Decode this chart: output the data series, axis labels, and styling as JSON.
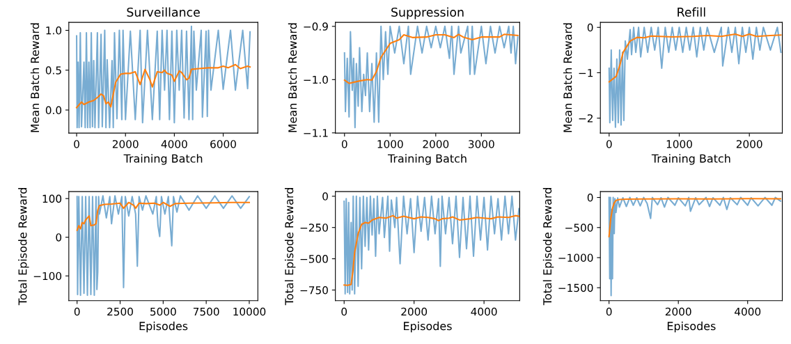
{
  "chart_data": [
    {
      "type": "line",
      "title": "Surveillance",
      "xlabel": "Training Batch",
      "ylabel": "Mean Batch Reward",
      "xlim": [
        -320,
        7420
      ],
      "ylim": [
        -0.29,
        1.1
      ],
      "xticks": [
        0,
        2000,
        4000,
        6000
      ],
      "yticks": [
        {
          "value": 0,
          "label": "0.0"
        },
        {
          "value": 0.5,
          "label": "0.5"
        },
        {
          "value": 1,
          "label": "1.0"
        }
      ],
      "series": [
        {
          "color": "#78acd2",
          "x": [
            0,
            20,
            60,
            100,
            150,
            200,
            300,
            350,
            400,
            450,
            500,
            550,
            600,
            650,
            700,
            750,
            850,
            900,
            1000,
            1050,
            1150,
            1200,
            1250,
            1350,
            1450,
            1500,
            1550,
            1650,
            1750,
            1850,
            1900,
            2000,
            2200,
            2400,
            2600,
            2700,
            2900,
            3100,
            3300,
            3400,
            3500,
            3600,
            3700,
            3800,
            3900,
            4000,
            4100,
            4200,
            4300,
            4400,
            4500,
            4600,
            4700,
            4750,
            4800,
            4900,
            5100,
            5150,
            5300,
            5350,
            5400,
            5500,
            5800,
            6000,
            6300,
            6500,
            6800,
            7000,
            7100
          ],
          "values": [
            0.93,
            -0.22,
            0.6,
            -0.22,
            0.97,
            -0.21,
            0.6,
            -0.22,
            0.97,
            -0.22,
            0.6,
            -0.22,
            0.97,
            -0.21,
            0.62,
            -0.22,
            0.97,
            -0.22,
            0.95,
            -0.21,
            1.0,
            -0.22,
            0.63,
            -0.22,
            0.62,
            -0.22,
            0.97,
            -0.11,
            1.0,
            -0.12,
            1.0,
            -0.12,
            0.99,
            -0.12,
            1.0,
            -0.16,
            1.0,
            -0.12,
            0.99,
            -0.12,
            1.0,
            0.25,
            1.0,
            -0.12,
            0.99,
            -0.16,
            1.0,
            0.25,
            1.0,
            -0.1,
            0.99,
            -0.12,
            1.05,
            -0.12,
            0.99,
            0.25,
            1.0,
            -0.09,
            0.99,
            -0.08,
            1.0,
            0.25,
            1.0,
            0.26,
            1.0,
            0.25,
            1.0,
            0.27,
            0.98
          ]
        },
        {
          "color": "#ff7f0e",
          "x": [
            0,
            200,
            300,
            500,
            700,
            900,
            1000,
            1100,
            1200,
            1300,
            1400,
            1500,
            1600,
            1800,
            2000,
            2200,
            2400,
            2600,
            2800,
            3000,
            3100,
            3300,
            3500,
            3600,
            3700,
            3900,
            4000,
            4200,
            4300,
            4500,
            4600,
            4700,
            5000,
            5400,
            5800,
            6000,
            6200,
            6500,
            6700,
            7000,
            7100
          ],
          "values": [
            0.03,
            0.1,
            0.07,
            0.1,
            0.12,
            0.17,
            0.2,
            0.18,
            0.08,
            0.1,
            0.04,
            0.2,
            0.35,
            0.45,
            0.46,
            0.46,
            0.48,
            0.32,
            0.51,
            0.38,
            0.29,
            0.48,
            0.47,
            0.5,
            0.46,
            0.44,
            0.36,
            0.49,
            0.47,
            0.38,
            0.4,
            0.51,
            0.52,
            0.53,
            0.53,
            0.55,
            0.53,
            0.57,
            0.52,
            0.55,
            0.54
          ]
        }
      ]
    },
    {
      "type": "line",
      "title": "Suppression",
      "xlabel": "Training Batch",
      "ylabel": "Mean Batch Reward",
      "xlim": [
        -200,
        3840
      ],
      "ylim": [
        -1.1005,
        -0.8925
      ],
      "xticks": [
        0,
        1000,
        2000,
        3000
      ],
      "yticks": [
        {
          "value": -1.1,
          "label": "−1.1"
        },
        {
          "value": -1.0,
          "label": "−1.0"
        },
        {
          "value": -0.9,
          "label": "−0.9"
        }
      ],
      "series": [
        {
          "color": "#78acd2",
          "x": [
            0,
            20,
            60,
            100,
            130,
            170,
            200,
            230,
            260,
            300,
            330,
            380,
            420,
            460,
            500,
            550,
            600,
            650,
            700,
            750,
            800,
            850,
            900,
            950,
            1000,
            1100,
            1200,
            1300,
            1400,
            1450,
            1600,
            1700,
            1800,
            1900,
            2000,
            2100,
            2200,
            2300,
            2350,
            2400,
            2500,
            2550,
            2700,
            2750,
            2800,
            2850,
            3000,
            3100,
            3200,
            3300,
            3400,
            3500,
            3600,
            3650,
            3700,
            3750,
            3800
          ],
          "values": [
            -0.95,
            -1.06,
            -0.96,
            -1.07,
            -0.91,
            -1.02,
            -0.96,
            -1.09,
            -0.97,
            -1.05,
            -0.94,
            -1.06,
            -0.99,
            -1.03,
            -0.95,
            -1.06,
            -0.97,
            -1.08,
            -0.95,
            -1.08,
            -0.9,
            -1.0,
            -0.91,
            -0.99,
            -0.9,
            -0.95,
            -0.9,
            -0.97,
            -0.9,
            -0.99,
            -0.9,
            -0.95,
            -0.9,
            -0.94,
            -0.9,
            -0.94,
            -0.9,
            -0.96,
            -0.9,
            -0.99,
            -0.9,
            -0.95,
            -0.9,
            -0.99,
            -0.9,
            -0.99,
            -0.9,
            -0.97,
            -0.9,
            -0.95,
            -0.9,
            -0.94,
            -0.9,
            -0.95,
            -0.9,
            -0.97,
            -0.92
          ]
        },
        {
          "color": "#ff7f0e",
          "x": [
            0,
            100,
            300,
            500,
            600,
            700,
            800,
            1000,
            1200,
            1300,
            1500,
            1800,
            2000,
            2200,
            2400,
            2500,
            2600,
            2800,
            3000,
            3200,
            3400,
            3500,
            3800
          ],
          "values": [
            -1.001,
            -1.007,
            -1.003,
            -1.0,
            -1.001,
            -0.985,
            -0.958,
            -0.932,
            -0.925,
            -0.916,
            -0.921,
            -0.92,
            -0.916,
            -0.916,
            -0.921,
            -0.915,
            -0.92,
            -0.925,
            -0.92,
            -0.92,
            -0.92,
            -0.915,
            -0.917
          ]
        }
      ]
    },
    {
      "type": "line",
      "title": "Refill",
      "xlabel": "Training Batch",
      "ylabel": "Mean Batch Reward",
      "xlim": [
        -125,
        2470
      ],
      "ylim": [
        -2.33,
        0.11
      ],
      "xticks": [
        0,
        1000,
        2000
      ],
      "yticks": [
        {
          "value": -2,
          "label": "−2"
        },
        {
          "value": -1,
          "label": "−1"
        },
        0
      ],
      "series": [
        {
          "color": "#78acd2",
          "x": [
            0,
            10,
            30,
            50,
            70,
            90,
            110,
            130,
            150,
            170,
            190,
            210,
            230,
            260,
            300,
            320,
            350,
            380,
            420,
            450,
            500,
            550,
            600,
            650,
            700,
            750,
            800,
            850,
            900,
            950,
            1000,
            1050,
            1100,
            1150,
            1200,
            1250,
            1300,
            1350,
            1400,
            1500,
            1600,
            1620,
            1700,
            1750,
            1800,
            1850,
            1900,
            1950,
            2000,
            2050,
            2100,
            2150,
            2200,
            2300,
            2400,
            2450
          ],
          "values": [
            -0.9,
            -2.1,
            -0.5,
            -2.05,
            -0.9,
            -2.2,
            -0.7,
            -2.1,
            -0.5,
            -2.15,
            -0.55,
            -2.05,
            -0.3,
            -0.7,
            -0.05,
            -0.6,
            0.0,
            -0.55,
            0.0,
            -0.65,
            0.0,
            -0.55,
            0.0,
            -0.5,
            0.0,
            -0.9,
            0.0,
            -0.55,
            0.0,
            -0.5,
            0.0,
            -0.55,
            0.0,
            -0.5,
            0.0,
            -0.65,
            0.0,
            -0.5,
            0.0,
            -0.55,
            0.0,
            -0.85,
            0.0,
            -0.55,
            0.0,
            -0.8,
            0.0,
            -0.55,
            0.0,
            -0.7,
            0.0,
            -0.5,
            0.0,
            -0.5,
            0.0,
            -0.55
          ]
        },
        {
          "color": "#ff7f0e",
          "x": [
            0,
            100,
            150,
            200,
            300,
            400,
            500,
            600,
            900,
            1200,
            1400,
            1600,
            1800,
            1900,
            2000,
            2100,
            2300,
            2450
          ],
          "values": [
            -1.2,
            -1.08,
            -0.85,
            -0.55,
            -0.3,
            -0.22,
            -0.23,
            -0.19,
            -0.21,
            -0.2,
            -0.18,
            -0.2,
            -0.15,
            -0.2,
            -0.15,
            -0.2,
            -0.18,
            -0.17
          ]
        }
      ]
    },
    {
      "type": "line",
      "xlabel": "Episodes",
      "ylabel": "Total Episode Reward",
      "xlim": [
        -480,
        10500
      ],
      "ylim": [
        -164,
        118
      ],
      "xticks": [
        0,
        2500,
        5000,
        7500,
        10000
      ],
      "yticks": [
        {
          "value": -100,
          "label": "−100"
        },
        0,
        100
      ],
      "series": [
        {
          "color": "#78acd2",
          "x": [
            0,
            30,
            100,
            200,
            300,
            400,
            500,
            600,
            700,
            800,
            900,
            1000,
            1100,
            1150,
            1200,
            1250,
            1300,
            1500,
            1700,
            1900,
            2000,
            2200,
            2400,
            2600,
            2700,
            2800,
            3000,
            3200,
            3400,
            3500,
            3600,
            3800,
            4000,
            4400,
            4600,
            4700,
            4800,
            4900,
            5100,
            5300,
            5400,
            5500,
            5600,
            5800,
            6000,
            6500,
            7000,
            7500,
            8000,
            8500,
            9000,
            9500,
            10000
          ],
          "values": [
            105,
            -148,
            105,
            -150,
            105,
            -145,
            105,
            -150,
            105,
            -148,
            105,
            -150,
            105,
            -135,
            -90,
            105,
            60,
            107,
            50,
            105,
            35,
            107,
            60,
            105,
            -130,
            105,
            55,
            105,
            60,
            -75,
            105,
            70,
            107,
            60,
            105,
            30,
            2,
            105,
            60,
            105,
            40,
            -22,
            105,
            65,
            107,
            70,
            107,
            75,
            107,
            75,
            107,
            75,
            105
          ]
        },
        {
          "color": "#ff7f0e",
          "x": [
            0,
            100,
            200,
            300,
            400,
            500,
            600,
            700,
            800,
            1000,
            1100,
            1200,
            1300,
            1600,
            2000,
            2500,
            2700,
            3000,
            3300,
            3400,
            3600,
            4000,
            4500,
            4800,
            5000,
            5200,
            5400,
            5700,
            6500,
            8000,
            9000,
            10000
          ],
          "values": [
            18,
            30,
            22,
            38,
            35,
            45,
            50,
            55,
            30,
            32,
            35,
            70,
            82,
            85,
            86,
            88,
            75,
            90,
            82,
            75,
            88,
            87,
            88,
            83,
            90,
            85,
            80,
            87,
            88,
            89,
            90,
            90
          ]
        }
      ]
    },
    {
      "type": "line",
      "xlabel": "Episodes",
      "ylabel": "Total Episode Reward",
      "xlim": [
        -250,
        5020
      ],
      "ylim": [
        -835,
        37
      ],
      "xticks": [
        0,
        2000,
        4000
      ],
      "yticks": [
        {
          "value": -750,
          "label": "−750"
        },
        {
          "value": -500,
          "label": "−500"
        },
        {
          "value": -250,
          "label": "−250"
        },
        0
      ],
      "series": [
        {
          "color": "#78acd2",
          "x": [
            0,
            30,
            60,
            100,
            130,
            160,
            200,
            230,
            260,
            300,
            350,
            400,
            450,
            500,
            550,
            600,
            650,
            700,
            750,
            800,
            850,
            900,
            950,
            1000,
            1100,
            1150,
            1250,
            1300,
            1350,
            1450,
            1500,
            1600,
            1700,
            1800,
            1900,
            2000,
            2100,
            2200,
            2300,
            2400,
            2500,
            2600,
            2700,
            2750,
            2800,
            2900,
            3000,
            3100,
            3200,
            3300,
            3400,
            3500,
            3600,
            3700,
            3800,
            3900,
            4000,
            4100,
            4200,
            4300,
            4400,
            4500,
            4600,
            4700,
            4800,
            4900,
            5000
          ],
          "values": [
            -40,
            -780,
            -20,
            -770,
            -50,
            -780,
            -210,
            -750,
            0,
            -780,
            0,
            -720,
            -10,
            -580,
            0,
            -400,
            -10,
            -430,
            0,
            -310,
            -20,
            -480,
            0,
            -300,
            -10,
            -330,
            0,
            -440,
            -30,
            -250,
            -10,
            -540,
            0,
            -300,
            -20,
            -450,
            0,
            -280,
            -10,
            -350,
            0,
            -300,
            -20,
            -560,
            0,
            -300,
            -10,
            -380,
            0,
            -490,
            -10,
            -420,
            0,
            -480,
            0,
            -350,
            -10,
            -430,
            0,
            -300,
            -20,
            -350,
            0,
            -300,
            0,
            -350,
            -100
          ]
        },
        {
          "color": "#ff7f0e",
          "x": [
            0,
            100,
            200,
            250,
            300,
            400,
            500,
            600,
            700,
            800,
            1000,
            1200,
            1400,
            1500,
            1700,
            2000,
            2200,
            2400,
            2600,
            2700,
            2800,
            3000,
            3100,
            3300,
            3600,
            3800,
            4000,
            4200,
            4400,
            4700,
            4900,
            5000
          ],
          "values": [
            -710,
            -712,
            -705,
            -600,
            -450,
            -300,
            -225,
            -210,
            -215,
            -190,
            -170,
            -175,
            -155,
            -175,
            -160,
            -180,
            -165,
            -170,
            -180,
            -195,
            -180,
            -175,
            -165,
            -190,
            -180,
            -170,
            -175,
            -180,
            -165,
            -170,
            -155,
            -160
          ]
        }
      ]
    },
    {
      "type": "line",
      "xlabel": "Episodes",
      "ylabel": "Total Episode Reward",
      "xlim": [
        -250,
        5000
      ],
      "ylim": [
        -1715,
        97
      ],
      "xticks": [
        0,
        2000,
        4000
      ],
      "yticks": [
        {
          "value": -1500,
          "label": "−1500"
        },
        {
          "value": -1000,
          "label": "−1000"
        },
        {
          "value": -500,
          "label": "−500"
        },
        0
      ],
      "series": [
        {
          "color": "#78acd2",
          "x": [
            0,
            20,
            40,
            60,
            80,
            100,
            120,
            150,
            170,
            200,
            250,
            300,
            400,
            500,
            600,
            700,
            800,
            900,
            1000,
            1100,
            1200,
            1250,
            1400,
            1500,
            1600,
            1700,
            1900,
            2000,
            2200,
            2300,
            2350,
            2500,
            2600,
            2800,
            2900,
            3000,
            3200,
            3300,
            3400,
            3500,
            3700,
            3800,
            4000,
            4100,
            4300,
            4500,
            4700,
            4800,
            4950
          ],
          "values": [
            0,
            -1350,
            0,
            -1630,
            -200,
            -1350,
            0,
            -600,
            -20,
            -250,
            -10,
            -160,
            -5,
            -150,
            0,
            -130,
            -5,
            -140,
            0,
            -100,
            -350,
            0,
            -120,
            -5,
            -160,
            0,
            -130,
            -5,
            -140,
            0,
            -230,
            -5,
            -120,
            0,
            -150,
            -5,
            -130,
            0,
            -200,
            -5,
            -120,
            0,
            -130,
            -5,
            -140,
            0,
            -130,
            0,
            -60
          ]
        },
        {
          "color": "#ff7f0e",
          "x": [
            0,
            50,
            100,
            150,
            200,
            300,
            500,
            1000,
            2000,
            3000,
            4000,
            4950
          ],
          "values": [
            -650,
            -350,
            -180,
            -90,
            -50,
            -35,
            -28,
            -25,
            -22,
            -25,
            -20,
            -22
          ]
        }
      ]
    }
  ]
}
